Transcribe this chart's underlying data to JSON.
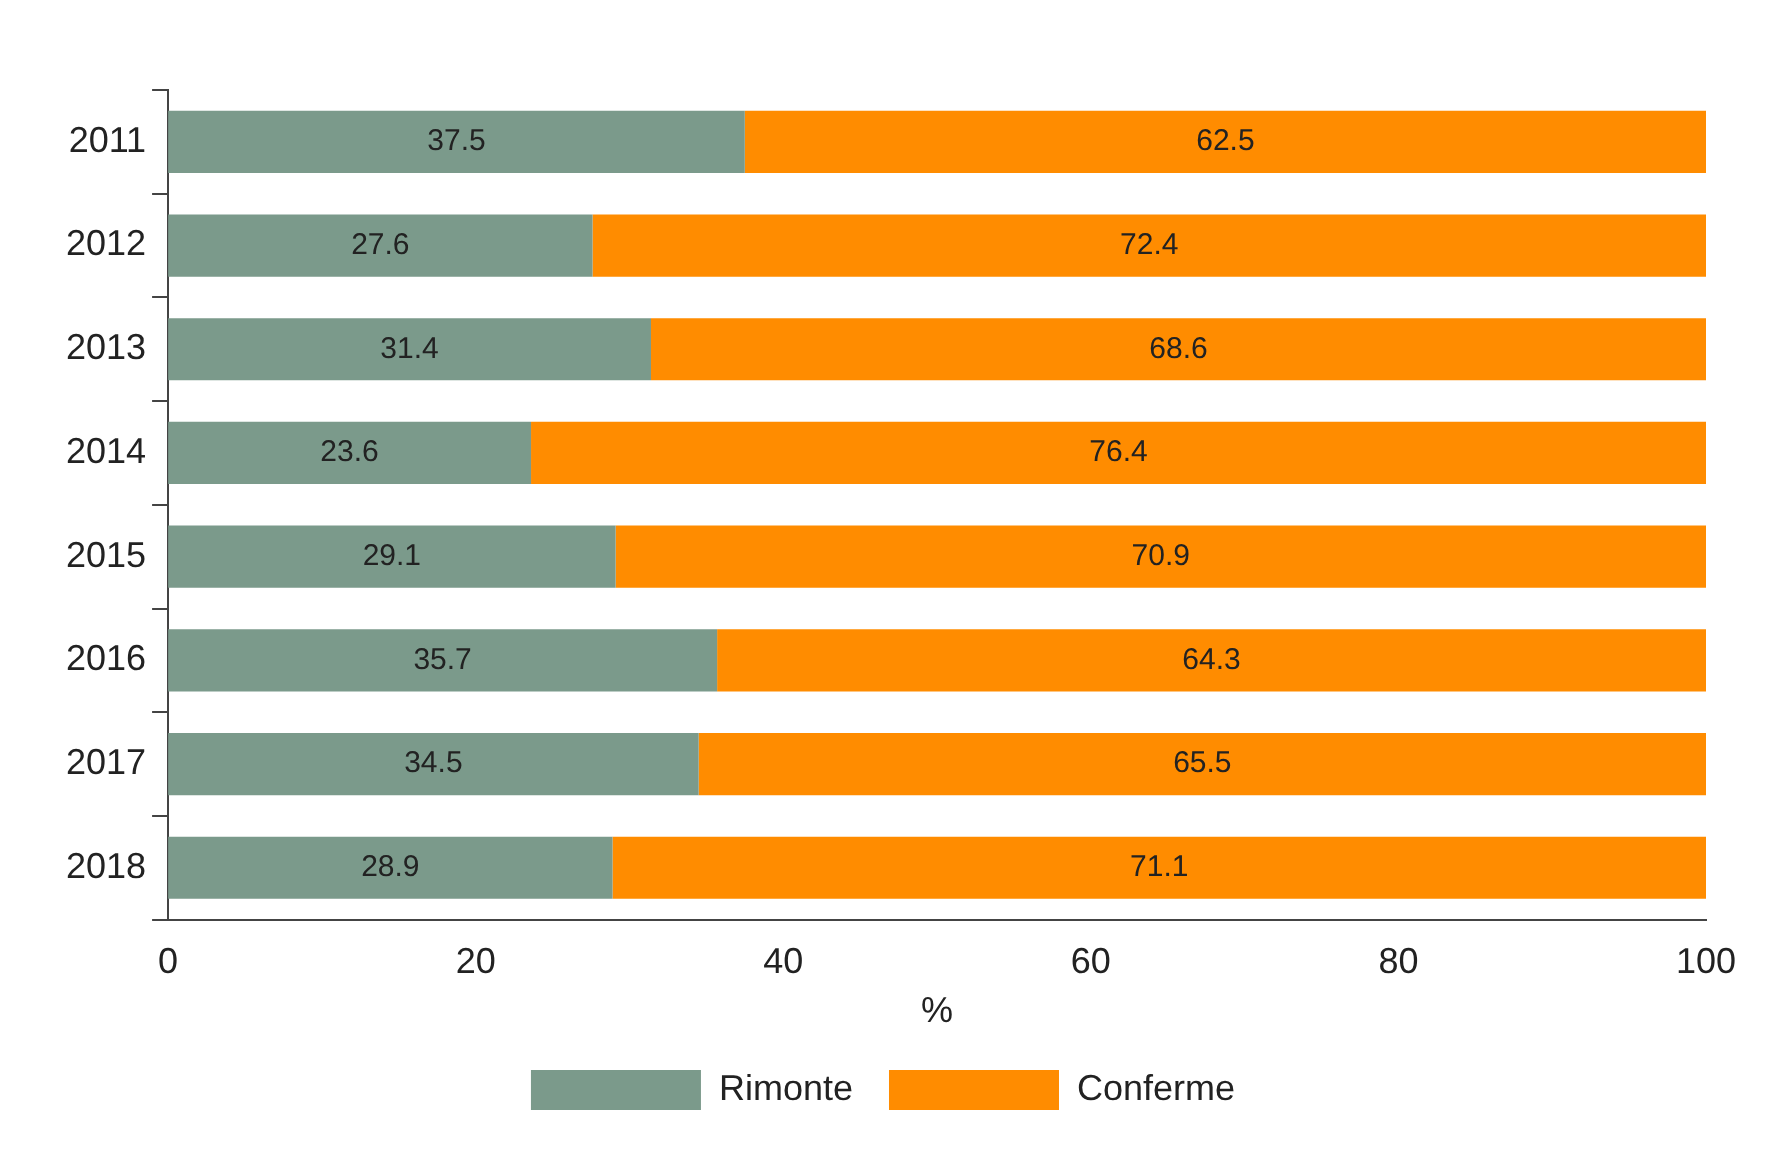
{
  "chart_data": {
    "type": "bar",
    "orientation": "horizontal",
    "stacked": true,
    "xlabel": "%",
    "categories": [
      "2011",
      "2012",
      "2013",
      "2014",
      "2015",
      "2016",
      "2017",
      "2018"
    ],
    "series": [
      {
        "name": "Rimonte",
        "color": "#7b9a8b",
        "values": [
          37.5,
          27.6,
          31.4,
          23.6,
          29.1,
          35.7,
          34.5,
          28.9
        ]
      },
      {
        "name": "Conferme",
        "color": "#ff8c00",
        "values": [
          62.5,
          72.4,
          68.6,
          76.4,
          70.9,
          64.3,
          65.5,
          71.1
        ]
      }
    ],
    "xlim": [
      0,
      100
    ],
    "xticks": [
      0,
      20,
      40,
      60,
      80,
      100
    ],
    "grid": false,
    "legend": "bottom",
    "data_labels": true
  }
}
